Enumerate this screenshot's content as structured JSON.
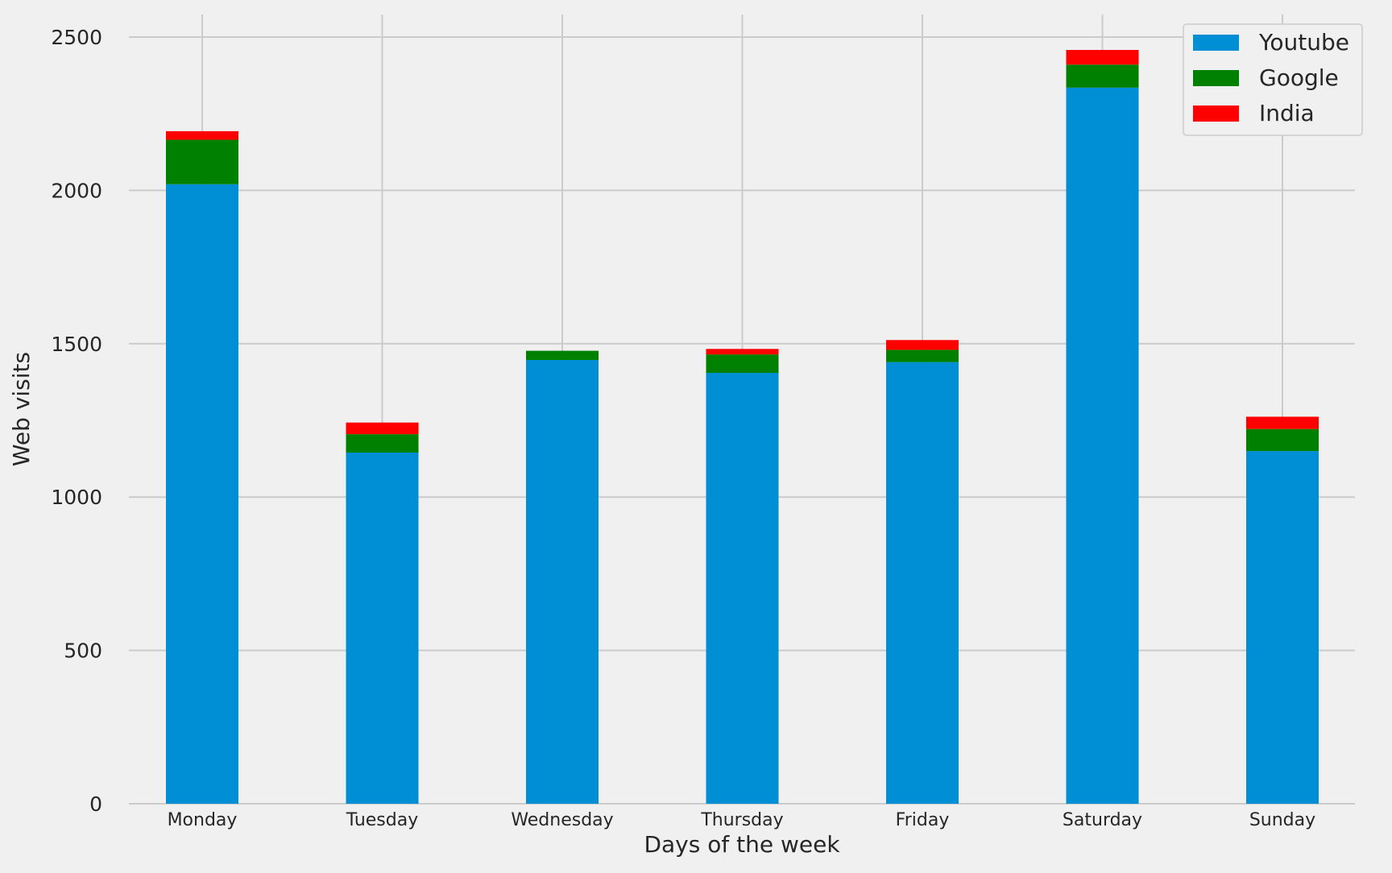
{
  "chart_data": {
    "type": "bar",
    "stacked": true,
    "title": "",
    "xlabel": "Days of the week",
    "ylabel": "Web visits",
    "categories": [
      "Monday",
      "Tuesday",
      "Wednesday",
      "Thursday",
      "Friday",
      "Saturday",
      "Sunday"
    ],
    "series": [
      {
        "name": "Youtube",
        "color": "#008fd5",
        "values": [
          2020,
          1145,
          1447,
          1405,
          1440,
          2335,
          1150
        ]
      },
      {
        "name": "Google",
        "color": "#008000",
        "values": [
          145,
          60,
          30,
          60,
          40,
          75,
          72
        ]
      },
      {
        "name": "India",
        "color": "#ff0000",
        "values": [
          28,
          38,
          0,
          18,
          32,
          48,
          40
        ]
      }
    ],
    "ylim": [
      0,
      2500
    ],
    "yticks": [
      0,
      500,
      1000,
      1500,
      2000,
      2500
    ],
    "grid": true,
    "legend_position": "top-right",
    "background": "#f0f0f0",
    "grid_color": "#cbcbcb"
  }
}
